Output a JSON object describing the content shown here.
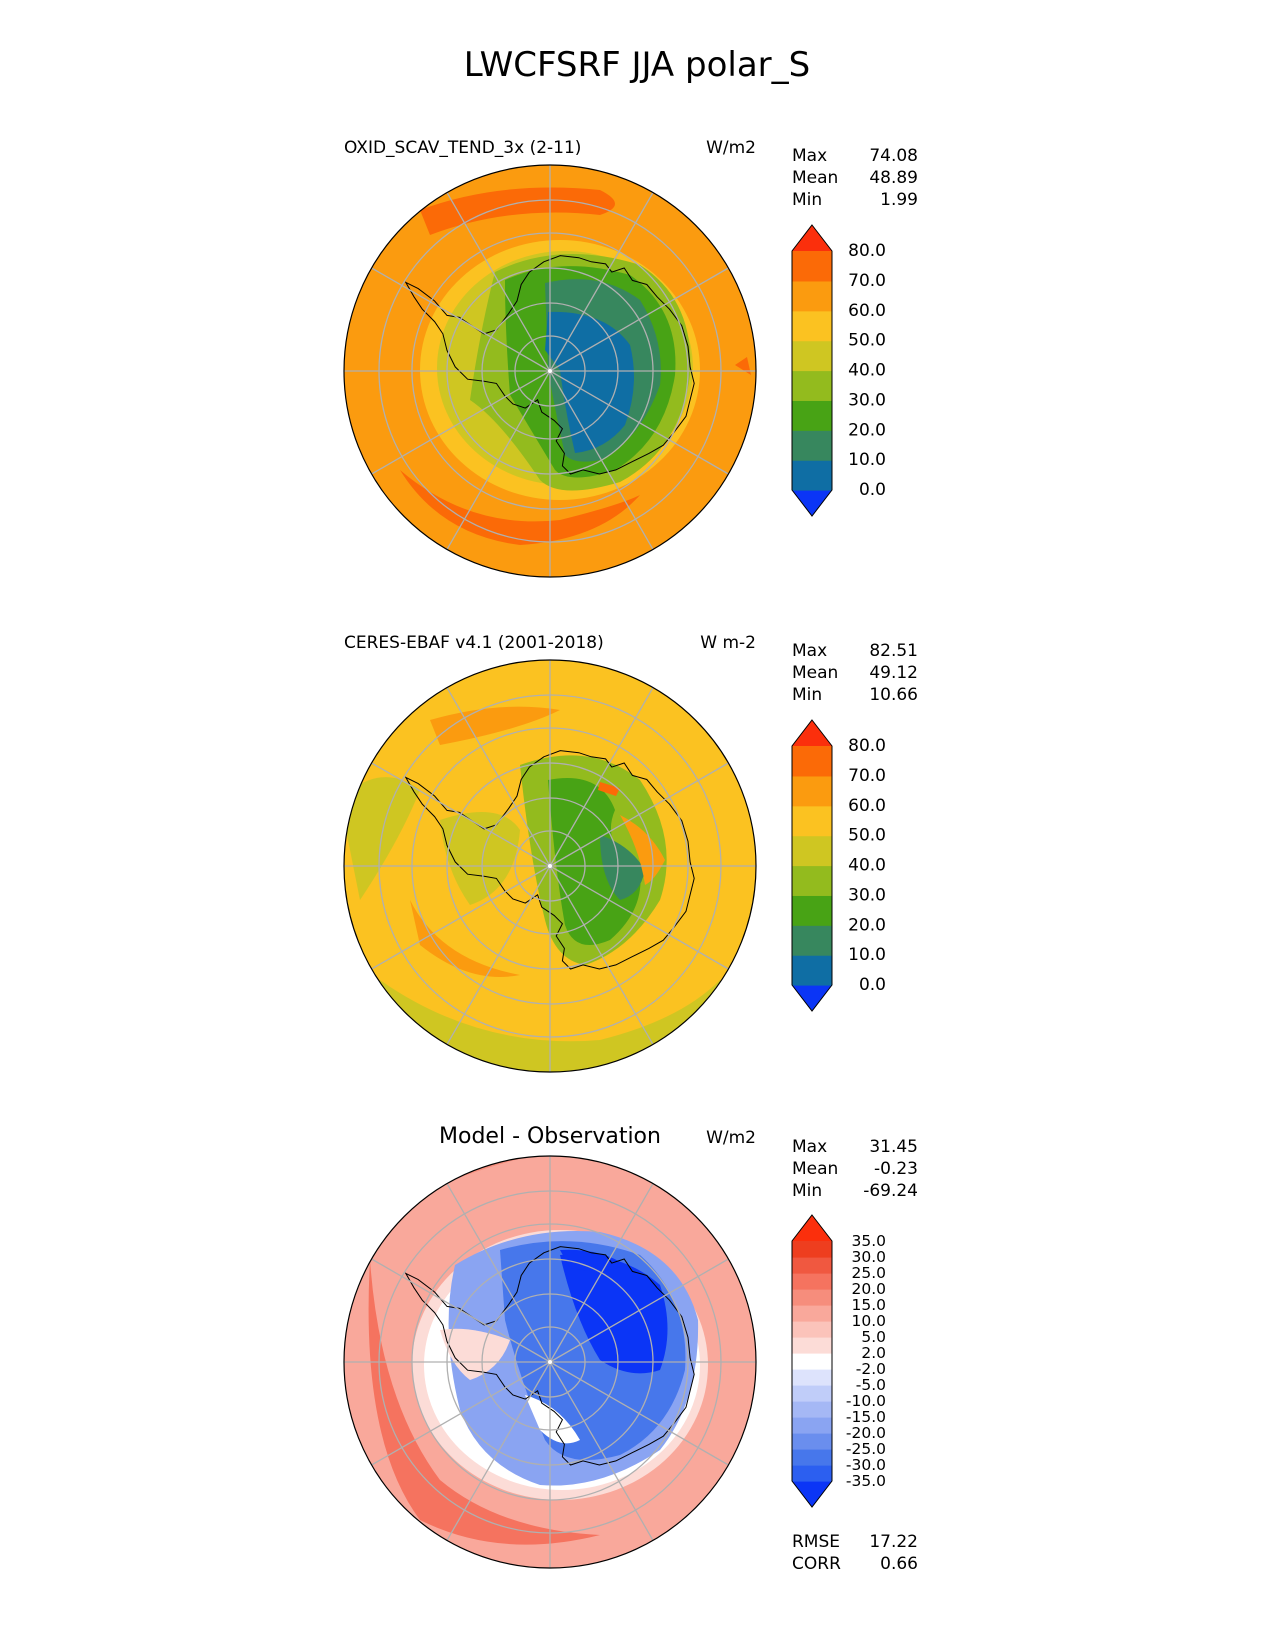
{
  "figure": {
    "title": "LWCFSRF JJA polar_S"
  },
  "colors": {
    "main_levels": [
      "#0b35f6",
      "#0f6ea4",
      "#37875e",
      "#48a315",
      "#93bb1e",
      "#cfc622",
      "#fbc221",
      "#fb9b0f",
      "#fb6a07",
      "#fb2f0c"
    ],
    "diff_levels": [
      "#0b35f6",
      "#2c5ff0",
      "#4777eb",
      "#6a8eee",
      "#8aa4f2",
      "#a5b8f5",
      "#c0cdf9",
      "#dde3fc",
      "#ffffff",
      "#fcdcd7",
      "#fbc3ba",
      "#f9a89b",
      "#f68d7c",
      "#f5735f",
      "#f05840",
      "#ee3e1f",
      "#fb2f0c"
    ],
    "grid": "#b0b0b0",
    "coast": "#000000"
  },
  "chart_data": [
    {
      "type": "heatmap",
      "projection": "polar_south",
      "left_title": "OXID_SCAV_TEND_3x (2-11)",
      "units": "W/m2",
      "stats": [
        {
          "label": "Max",
          "value": "74.08"
        },
        {
          "label": "Mean",
          "value": "48.89"
        },
        {
          "label": "Min",
          "value": "1.99"
        }
      ],
      "colorbar": {
        "levels": [
          0,
          10,
          20,
          30,
          40,
          50,
          60,
          70,
          80
        ],
        "tick_labels": [
          "0.0",
          "10.0",
          "20.0",
          "30.0",
          "40.0",
          "50.0",
          "60.0",
          "70.0",
          "80.0"
        ],
        "extend": "both"
      }
    },
    {
      "type": "heatmap",
      "projection": "polar_south",
      "left_title": "CERES-EBAF v4.1 (2001-2018)",
      "units": "W m-2",
      "stats": [
        {
          "label": "Max",
          "value": "82.51"
        },
        {
          "label": "Mean",
          "value": "49.12"
        },
        {
          "label": "Min",
          "value": "10.66"
        }
      ],
      "colorbar": {
        "levels": [
          0,
          10,
          20,
          30,
          40,
          50,
          60,
          70,
          80
        ],
        "tick_labels": [
          "0.0",
          "10.0",
          "20.0",
          "30.0",
          "40.0",
          "50.0",
          "60.0",
          "70.0",
          "80.0"
        ],
        "extend": "both"
      }
    },
    {
      "type": "heatmap",
      "projection": "polar_south",
      "center_title": "Model - Observation",
      "units": "W/m2",
      "stats": [
        {
          "label": "Max",
          "value": "31.45"
        },
        {
          "label": "Mean",
          "value": "-0.23"
        },
        {
          "label": "Min",
          "value": "-69.24"
        }
      ],
      "colorbar": {
        "levels": [
          -35,
          -30,
          -25,
          -20,
          -15,
          -10,
          -5,
          -2,
          2,
          5,
          10,
          15,
          20,
          25,
          30,
          35
        ],
        "tick_labels": [
          "-35.0",
          "-30.0",
          "-25.0",
          "-20.0",
          "-15.0",
          "-10.0",
          "-5.0",
          "-2.0",
          "2.0",
          "5.0",
          "10.0",
          "15.0",
          "20.0",
          "25.0",
          "30.0",
          "35.0"
        ],
        "extend": "both"
      },
      "metrics": [
        {
          "label": "RMSE",
          "value": "17.22"
        },
        {
          "label": "CORR",
          "value": "0.66"
        }
      ]
    }
  ]
}
